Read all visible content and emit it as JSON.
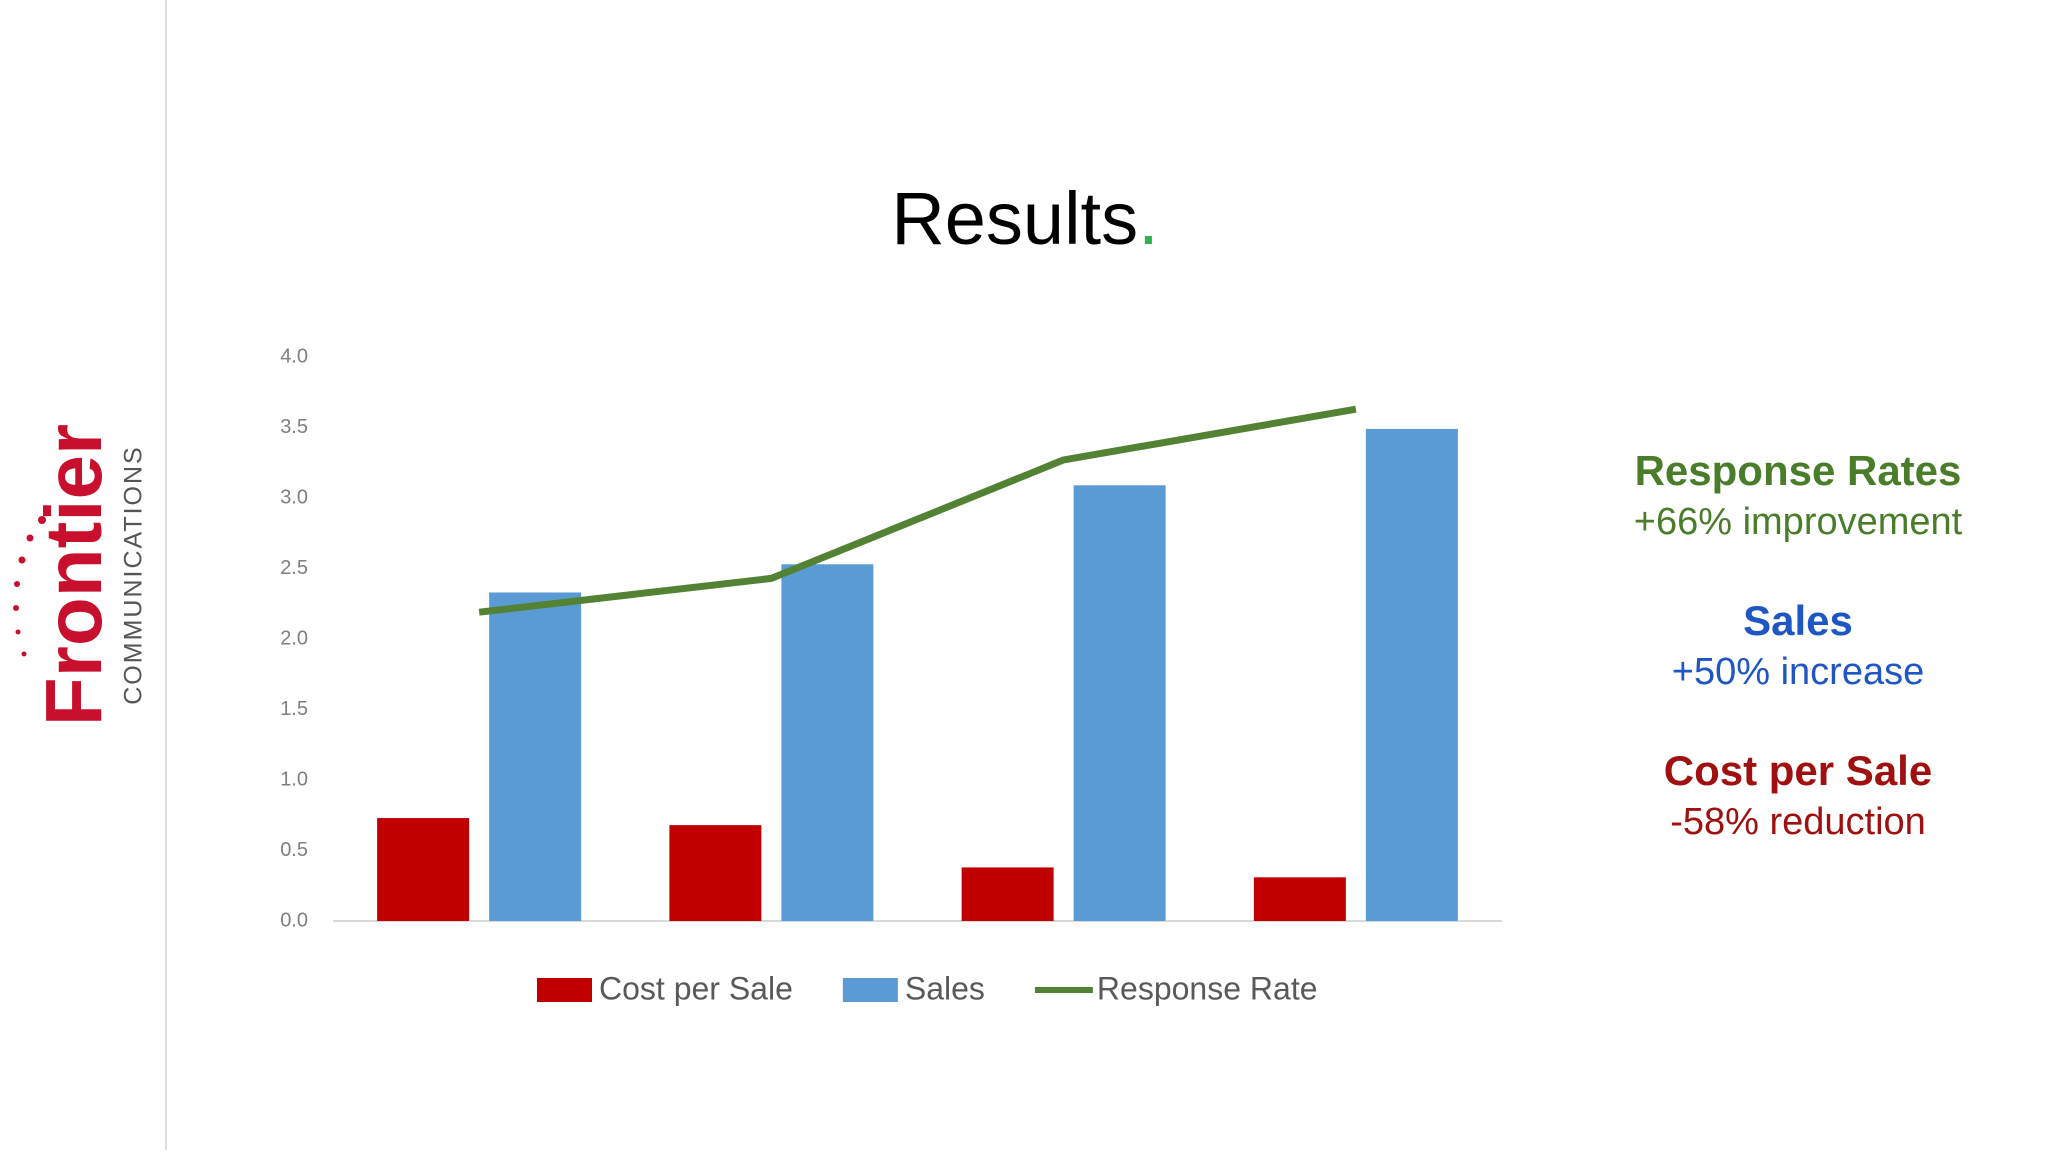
{
  "logo": {
    "name": "Frontier",
    "tagline": "COMMUNICATIONS"
  },
  "header": {
    "title": "Results",
    "title_mark": "."
  },
  "chart_data": {
    "type": "bar",
    "categories": [
      null,
      null,
      null,
      null
    ],
    "series": [
      {
        "name": "Cost per Sale",
        "color": "#c00000",
        "values": [
          0.73,
          0.68,
          0.38,
          0.31
        ]
      },
      {
        "name": "Sales",
        "color": "#5b9bd5",
        "values": [
          2.33,
          2.53,
          3.09,
          3.49
        ]
      },
      {
        "name": "Response Rate",
        "color": "#548235",
        "type": "line",
        "values": [
          2.19,
          2.43,
          3.27,
          3.63
        ]
      }
    ],
    "ylim": [
      0,
      4
    ],
    "yticks": [
      {
        "value": 0,
        "label": "0.0"
      },
      {
        "value": 0.5,
        "label": "0.5"
      },
      {
        "value": 1,
        "label": "1.0"
      },
      {
        "value": 1.5,
        "label": "1.5"
      },
      {
        "value": 2,
        "label": "2.0"
      },
      {
        "value": 2.5,
        "label": "2.5"
      },
      {
        "value": 3,
        "label": "3.0"
      },
      {
        "value": 3.5,
        "label": "3.5"
      },
      {
        "value": 4,
        "label": "4.0"
      }
    ],
    "grid": false,
    "legend": "bottom"
  },
  "highlights": [
    {
      "title": "Response Rates",
      "detail": "+66% improvement",
      "color": "#4a7d2a"
    },
    {
      "title": "Sales",
      "detail": "+50% increase",
      "color": "#1f56c4"
    },
    {
      "title": "Cost per Sale",
      "detail": "-58% reduction",
      "color": "#a01010"
    }
  ]
}
